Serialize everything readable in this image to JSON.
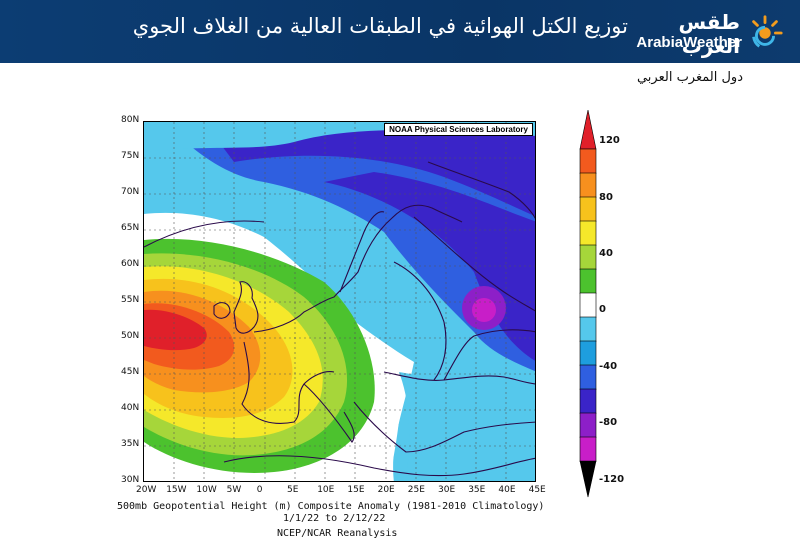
{
  "header": {
    "title": "توزيع الكتل الهوائية في الطبقات العالية من الغلاف الجوي",
    "logo_ar": "طقس العرب",
    "logo_en": "ArabiaWeather"
  },
  "subtitle": "دول المغرب العربي",
  "map": {
    "credit": "NOAA Physical Sciences Laboratory",
    "lat_labels": [
      "80N",
      "75N",
      "70N",
      "65N",
      "60N",
      "55N",
      "50N",
      "45N",
      "40N",
      "35N",
      "30N"
    ],
    "lon_labels": [
      "20W",
      "15W",
      "10W",
      "5W",
      "0",
      "5E",
      "10E",
      "15E",
      "20E",
      "25E",
      "30E",
      "35E",
      "40E",
      "45E"
    ],
    "caption_line1": "500mb Geopotential Height (m) Composite Anomaly (1981-2010 Climatology)",
    "caption_line2": "1/1/22  to 2/12/22",
    "caption_line3": "NCEP/NCAR Reanalysis"
  },
  "colorbar": {
    "labels": [
      "120",
      "80",
      "40",
      "0",
      "-40",
      "-80",
      "-120"
    ],
    "colors": [
      "#e0202a",
      "#f25a1e",
      "#f7901e",
      "#f7c21c",
      "#f5e82a",
      "#a6d63a",
      "#4cc22e",
      "#ffffff",
      "#55c8ec",
      "#1e9ede",
      "#2f5fe0",
      "#3a24c8",
      "#8d1fc8",
      "#c81ec8",
      "#000000"
    ]
  }
}
